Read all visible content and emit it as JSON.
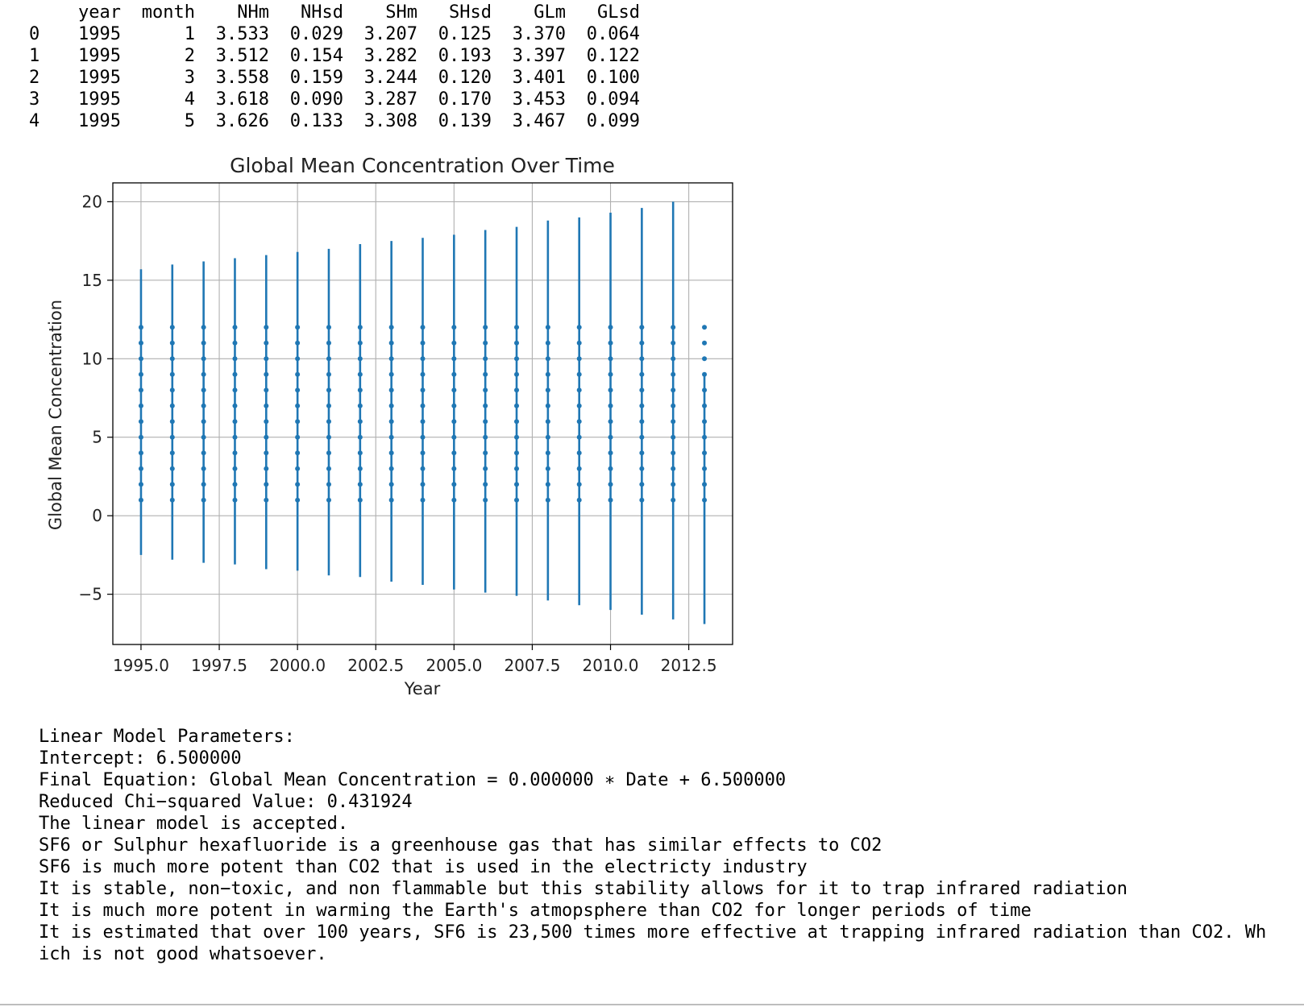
{
  "dataframe": {
    "columns": [
      "",
      "year",
      "month",
      "NHm",
      "NHsd",
      "SHm",
      "SHsd",
      "GLm",
      "GLsd"
    ],
    "rows": [
      [
        "0",
        "1995",
        "1",
        "3.533",
        "0.029",
        "3.207",
        "0.125",
        "3.370",
        "0.064"
      ],
      [
        "1",
        "1995",
        "2",
        "3.512",
        "0.154",
        "3.282",
        "0.193",
        "3.397",
        "0.122"
      ],
      [
        "2",
        "1995",
        "3",
        "3.558",
        "0.159",
        "3.244",
        "0.120",
        "3.401",
        "0.100"
      ],
      [
        "3",
        "1995",
        "4",
        "3.618",
        "0.090",
        "3.287",
        "0.170",
        "3.453",
        "0.094"
      ],
      [
        "4",
        "1995",
        "5",
        "3.626",
        "0.133",
        "3.308",
        "0.139",
        "3.467",
        "0.099"
      ]
    ]
  },
  "chart_data": {
    "type": "scatter",
    "title": "Global Mean Concentration Over Time",
    "xlabel": "Year",
    "ylabel": "Global Mean Concentration",
    "xlim": [
      1994.1,
      2013.9
    ],
    "ylim": [
      -8.2,
      21.2
    ],
    "x_ticks": [
      "1995.0",
      "1997.5",
      "2000.0",
      "2002.5",
      "2005.0",
      "2007.5",
      "2010.0",
      "2012.5"
    ],
    "y_ticks": [
      "−5",
      "0",
      "5",
      "10",
      "15",
      "20"
    ],
    "x_tick_values": [
      1995.0,
      1997.5,
      2000.0,
      2002.5,
      2005.0,
      2007.5,
      2010.0,
      2012.5
    ],
    "y_tick_values": [
      -5,
      0,
      5,
      10,
      15,
      20
    ],
    "grid": true,
    "color": "#1f77b4",
    "series": [
      {
        "x": 1995,
        "y_points": [
          1,
          2,
          3,
          4,
          5,
          6,
          7,
          8,
          9,
          10,
          11,
          12
        ],
        "err_low": -2.5,
        "err_high": 15.7
      },
      {
        "x": 1996,
        "y_points": [
          1,
          2,
          3,
          4,
          5,
          6,
          7,
          8,
          9,
          10,
          11,
          12
        ],
        "err_low": -2.8,
        "err_high": 16.0
      },
      {
        "x": 1997,
        "y_points": [
          1,
          2,
          3,
          4,
          5,
          6,
          7,
          8,
          9,
          10,
          11,
          12
        ],
        "err_low": -3.0,
        "err_high": 16.2
      },
      {
        "x": 1998,
        "y_points": [
          1,
          2,
          3,
          4,
          5,
          6,
          7,
          8,
          9,
          10,
          11,
          12
        ],
        "err_low": -3.1,
        "err_high": 16.4
      },
      {
        "x": 1999,
        "y_points": [
          1,
          2,
          3,
          4,
          5,
          6,
          7,
          8,
          9,
          10,
          11,
          12
        ],
        "err_low": -3.4,
        "err_high": 16.6
      },
      {
        "x": 2000,
        "y_points": [
          1,
          2,
          3,
          4,
          5,
          6,
          7,
          8,
          9,
          10,
          11,
          12
        ],
        "err_low": -3.5,
        "err_high": 16.8
      },
      {
        "x": 2001,
        "y_points": [
          1,
          2,
          3,
          4,
          5,
          6,
          7,
          8,
          9,
          10,
          11,
          12
        ],
        "err_low": -3.8,
        "err_high": 17.0
      },
      {
        "x": 2002,
        "y_points": [
          1,
          2,
          3,
          4,
          5,
          6,
          7,
          8,
          9,
          10,
          11,
          12
        ],
        "err_low": -3.9,
        "err_high": 17.3
      },
      {
        "x": 2003,
        "y_points": [
          1,
          2,
          3,
          4,
          5,
          6,
          7,
          8,
          9,
          10,
          11,
          12
        ],
        "err_low": -4.2,
        "err_high": 17.5
      },
      {
        "x": 2004,
        "y_points": [
          1,
          2,
          3,
          4,
          5,
          6,
          7,
          8,
          9,
          10,
          11,
          12
        ],
        "err_low": -4.4,
        "err_high": 17.7
      },
      {
        "x": 2005,
        "y_points": [
          1,
          2,
          3,
          4,
          5,
          6,
          7,
          8,
          9,
          10,
          11,
          12
        ],
        "err_low": -4.7,
        "err_high": 17.9
      },
      {
        "x": 2006,
        "y_points": [
          1,
          2,
          3,
          4,
          5,
          6,
          7,
          8,
          9,
          10,
          11,
          12
        ],
        "err_low": -4.9,
        "err_high": 18.2
      },
      {
        "x": 2007,
        "y_points": [
          1,
          2,
          3,
          4,
          5,
          6,
          7,
          8,
          9,
          10,
          11,
          12
        ],
        "err_low": -5.1,
        "err_high": 18.4
      },
      {
        "x": 2008,
        "y_points": [
          1,
          2,
          3,
          4,
          5,
          6,
          7,
          8,
          9,
          10,
          11,
          12
        ],
        "err_low": -5.4,
        "err_high": 18.8
      },
      {
        "x": 2009,
        "y_points": [
          1,
          2,
          3,
          4,
          5,
          6,
          7,
          8,
          9,
          10,
          11,
          12
        ],
        "err_low": -5.7,
        "err_high": 19.0
      },
      {
        "x": 2010,
        "y_points": [
          1,
          2,
          3,
          4,
          5,
          6,
          7,
          8,
          9,
          10,
          11,
          12
        ],
        "err_low": -6.0,
        "err_high": 19.3
      },
      {
        "x": 2011,
        "y_points": [
          1,
          2,
          3,
          4,
          5,
          6,
          7,
          8,
          9,
          10,
          11,
          12
        ],
        "err_low": -6.3,
        "err_high": 19.6
      },
      {
        "x": 2012,
        "y_points": [
          1,
          2,
          3,
          4,
          5,
          6,
          7,
          8,
          9,
          10,
          11,
          12
        ],
        "err_low": -6.6,
        "err_high": 20.0
      },
      {
        "x": 2013,
        "y_points": [
          1,
          2,
          3,
          4,
          5,
          6,
          7,
          8,
          9,
          10,
          11,
          12
        ],
        "err_low": -6.9,
        "err_high": 9.0
      }
    ]
  },
  "output_lines": [
    "Linear Model Parameters:",
    "Intercept: 6.500000",
    "Final Equation: Global Mean Concentration = 0.000000 ∗ Date + 6.500000",
    "Reduced Chi−squared Value: 0.431924",
    "The linear model is accepted.",
    "SF6 or Sulphur hexafluoride is a greenhouse gas that has similar effects to CO2",
    "SF6 is much more potent than CO2 that is used in the electricty industry",
    "It is stable, non−toxic, and non flammable but this stability allows for it to trap infrared radiation",
    "It is much more potent in warming the Earth's atmopsphere than CO2 for longer periods of time",
    "It is estimated that over 100 years, SF6 is 23,500 times more effective at trapping infrared radiation than CO2. Wh",
    "ich is not good whatsoever."
  ]
}
